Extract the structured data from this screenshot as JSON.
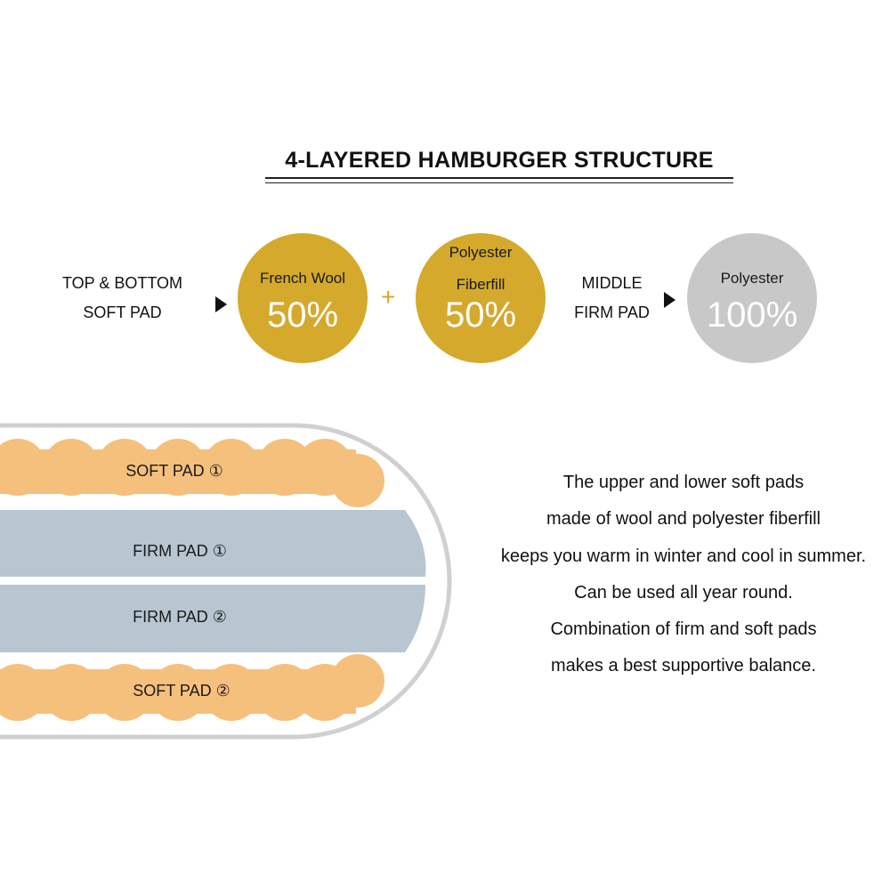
{
  "title": "4-LAYERED HAMBURGER STRUCTURE",
  "composition": {
    "soft_pad_label": [
      "TOP & BOTTOM",
      "SOFT PAD"
    ],
    "french_wool": {
      "name": "French Wool",
      "percent": "50%"
    },
    "plus": "+",
    "polyester_fiberfill": {
      "name": [
        "Polyester",
        "Fiberfill"
      ],
      "percent": "50%"
    },
    "firm_pad_label": [
      "MIDDLE",
      "FIRM PAD"
    ],
    "polyester": {
      "name": "Polyester",
      "percent": "100%"
    }
  },
  "layers": [
    {
      "label": "SOFT PAD ①",
      "type": "soft"
    },
    {
      "label": "FIRM PAD ①",
      "type": "firm"
    },
    {
      "label": "FIRM PAD ②",
      "type": "firm"
    },
    {
      "label": "SOFT PAD ②",
      "type": "soft"
    }
  ],
  "description": [
    "The upper and lower soft pads",
    "made of wool and polyester fiberfill",
    "keeps you warm in winter and cool in summer.",
    "Can be used all year round.",
    "Combination of firm and soft pads",
    "makes a best supportive balance."
  ],
  "colors": {
    "gold": "#d4a92c",
    "grey": "#c8c8c8",
    "soft_pad": "#f5c07c",
    "firm_pad": "#b7c6d0",
    "outline": "#d0d0d0"
  }
}
